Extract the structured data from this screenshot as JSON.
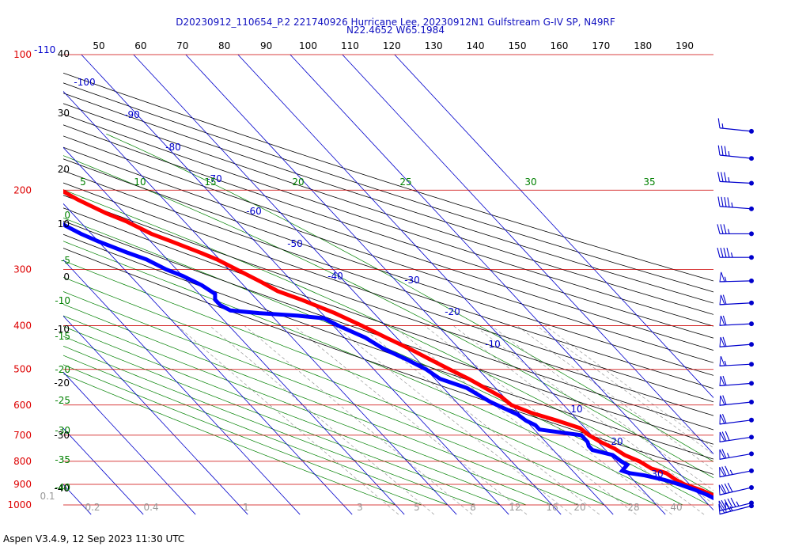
{
  "header": {
    "title_line1": "D20230912_110654_P.2 221740926 Hurricane Lee, 20230912N1 Gulfstream G-IV SP, N49RF",
    "title_line2": "N22.4652 W65.1984"
  },
  "footer": {
    "version": "Aspen V3.4.9, 12 Sep 2023  11:30 UTC"
  },
  "chart_data": {
    "type": "line",
    "title": "D20230912_110654_P.2 221740926 Hurricane Lee, 20230912N1 Gulfstream G-IV SP, N49RF",
    "subtitle": "N22.4652 W65.1984",
    "xlim": [
      -40,
      45
    ],
    "ylim": [
      1000,
      100
    ],
    "y_scale": "log",
    "grid": true,
    "colors": {
      "temperature": "#ff0000",
      "dewpoint": "#0000ff",
      "isobar": "#cc0000",
      "isotherm": "#0000cc",
      "dry_adiabat": "#000000",
      "moist_adiabat": "#008000",
      "mixing_ratio": "#999999",
      "label_blue": "#0000cc",
      "label_green": "#008000",
      "label_red": "#dd0000"
    },
    "pressure_labels": [
      {
        "p": 100,
        "text": "100"
      },
      {
        "p": 200,
        "text": "200"
      },
      {
        "p": 300,
        "text": "300"
      },
      {
        "p": 400,
        "text": "400"
      },
      {
        "p": 500,
        "text": "500"
      },
      {
        "p": 600,
        "text": "600"
      },
      {
        "p": 700,
        "text": "700"
      },
      {
        "p": 800,
        "text": "800"
      },
      {
        "p": 900,
        "text": "900"
      },
      {
        "p": 1000,
        "text": "1000"
      }
    ],
    "pressure_label_suffix": "-110",
    "isobar_lines": [
      100,
      200,
      300,
      400,
      500,
      600,
      700,
      800,
      900,
      1000
    ],
    "isotherm_lines": [
      -110,
      -100,
      -90,
      -80,
      -70,
      -60,
      -50,
      -40,
      -30,
      -20,
      -10,
      0,
      10,
      20,
      30,
      40
    ],
    "isotherm_labels": [
      {
        "t": -100,
        "text": "-100"
      },
      {
        "t": -90,
        "text": "-90"
      },
      {
        "t": -80,
        "text": "-80"
      },
      {
        "t": -70,
        "text": "-70"
      },
      {
        "t": -60,
        "text": "-60"
      },
      {
        "t": -50,
        "text": "-50"
      },
      {
        "t": -40,
        "text": "-40"
      },
      {
        "t": -30,
        "text": "-30"
      },
      {
        "t": -20,
        "text": "-20"
      },
      {
        "t": -10,
        "text": "-10"
      },
      {
        "t": 10,
        "text": "10"
      },
      {
        "t": 20,
        "text": "20"
      },
      {
        "t": 30,
        "text": "30"
      }
    ],
    "theta_lines": [
      40,
      50,
      60,
      70,
      80,
      90,
      100,
      110,
      120,
      130,
      140,
      150,
      160,
      170,
      180,
      190
    ],
    "theta_labels": [
      "50",
      "60",
      "70",
      "80",
      "90",
      "100",
      "110",
      "120",
      "130",
      "140",
      "150",
      "160",
      "170",
      "180",
      "190"
    ],
    "moist_lines": [
      -40,
      -35,
      -30,
      -25,
      -20,
      -15,
      -10,
      -5,
      0,
      5,
      10,
      15,
      20,
      25,
      30,
      35
    ],
    "moist_labels_top": [
      "5",
      "10",
      "15",
      "20",
      "25",
      "30",
      "35"
    ],
    "mixing_ratio_lines": [
      0.1,
      0.2,
      0.4,
      1,
      2,
      3,
      5,
      8,
      12,
      16,
      20,
      28,
      36,
      40
    ],
    "mixing_ratio_labels": [
      "0.1",
      "0.2",
      "0.4",
      "1",
      "3",
      "5",
      "8",
      "12",
      "16",
      "20",
      "28",
      "40"
    ],
    "left_axis_labels": [
      {
        "text": "40",
        "kind": "black"
      },
      {
        "text": "30",
        "kind": "black"
      },
      {
        "text": "20",
        "kind": "black"
      },
      {
        "text": "10",
        "kind": "black"
      },
      {
        "text": "0",
        "kind": "black"
      },
      {
        "text": "-10",
        "kind": "black"
      },
      {
        "text": "-20",
        "kind": "black"
      },
      {
        "text": "-30",
        "kind": "black"
      },
      {
        "text": "-40",
        "kind": "black"
      },
      {
        "text": "0",
        "kind": "green"
      },
      {
        "text": "-5",
        "kind": "green"
      },
      {
        "text": "-10",
        "kind": "green"
      },
      {
        "text": "-15",
        "kind": "green"
      },
      {
        "text": "-20",
        "kind": "green"
      },
      {
        "text": "-25",
        "kind": "green"
      },
      {
        "text": "-30",
        "kind": "green"
      },
      {
        "text": "-35",
        "kind": "green"
      },
      {
        "text": "-40",
        "kind": "green"
      }
    ],
    "series": [
      {
        "key": "temperature",
        "points": [
          {
            "p": 1000,
            "t": 26.0
          },
          {
            "p": 990,
            "t": 25.0
          },
          {
            "p": 975,
            "t": 24.0
          },
          {
            "p": 950,
            "t": 22.5
          },
          {
            "p": 925,
            "t": 21.0
          },
          {
            "p": 900,
            "t": 19.0
          },
          {
            "p": 880,
            "t": 18.2
          },
          {
            "p": 850,
            "t": 17.5
          },
          {
            "p": 830,
            "t": 15.5
          },
          {
            "p": 800,
            "t": 14.5
          },
          {
            "p": 775,
            "t": 12.8
          },
          {
            "p": 750,
            "t": 12.0
          },
          {
            "p": 725,
            "t": 10.5
          },
          {
            "p": 700,
            "t": 9.5
          },
          {
            "p": 675,
            "t": 9.0
          },
          {
            "p": 650,
            "t": 6.0
          },
          {
            "p": 625,
            "t": 2.5
          },
          {
            "p": 600,
            "t": 0.0
          },
          {
            "p": 575,
            "t": -0.5
          },
          {
            "p": 550,
            "t": -2.0
          },
          {
            "p": 525,
            "t": -3.5
          },
          {
            "p": 500,
            "t": -5.5
          },
          {
            "p": 475,
            "t": -7.5
          },
          {
            "p": 450,
            "t": -9.5
          },
          {
            "p": 425,
            "t": -12.0
          },
          {
            "p": 400,
            "t": -14.5
          },
          {
            "p": 375,
            "t": -17.5
          },
          {
            "p": 350,
            "t": -21.5
          },
          {
            "p": 335,
            "t": -24.5
          },
          {
            "p": 320,
            "t": -26.0
          },
          {
            "p": 300,
            "t": -28.5
          },
          {
            "p": 285,
            "t": -30.5
          },
          {
            "p": 275,
            "t": -32.5
          },
          {
            "p": 260,
            "t": -36.0
          },
          {
            "p": 250,
            "t": -38.5
          },
          {
            "p": 235,
            "t": -41.0
          },
          {
            "p": 225,
            "t": -43.5
          },
          {
            "p": 210,
            "t": -46.5
          },
          {
            "p": 200,
            "t": -48.0
          },
          {
            "p": 190,
            "t": -50.5
          },
          {
            "p": 180,
            "t": -52.5
          },
          {
            "p": 172,
            "t": -55.0
          },
          {
            "p": 167,
            "t": -54.5
          },
          {
            "p": 160,
            "t": -56.0
          },
          {
            "p": 154,
            "t": -57.5
          }
        ]
      },
      {
        "key": "dewpoint",
        "points": [
          {
            "p": 1000,
            "t": 23.5
          },
          {
            "p": 990,
            "t": 22.8
          },
          {
            "p": 975,
            "t": 22.5
          },
          {
            "p": 950,
            "t": 21.5
          },
          {
            "p": 925,
            "t": 20.0
          },
          {
            "p": 900,
            "t": 18.0
          },
          {
            "p": 880,
            "t": 16.0
          },
          {
            "p": 860,
            "t": 13.0
          },
          {
            "p": 850,
            "t": 10.5
          },
          {
            "p": 840,
            "t": 9.5
          },
          {
            "p": 815,
            "t": 11.5
          },
          {
            "p": 800,
            "t": 11.0
          },
          {
            "p": 775,
            "t": 10.5
          },
          {
            "p": 755,
            "t": 7.5
          },
          {
            "p": 740,
            "t": 7.5
          },
          {
            "p": 725,
            "t": 8.0
          },
          {
            "p": 700,
            "t": 8.0
          },
          {
            "p": 690,
            "t": 4.5
          },
          {
            "p": 680,
            "t": 1.0
          },
          {
            "p": 665,
            "t": 1.0
          },
          {
            "p": 650,
            "t": 0.0
          },
          {
            "p": 630,
            "t": -0.5
          },
          {
            "p": 610,
            "t": -2.0
          },
          {
            "p": 590,
            "t": -3.5
          },
          {
            "p": 570,
            "t": -4.5
          },
          {
            "p": 550,
            "t": -5.5
          },
          {
            "p": 525,
            "t": -9.0
          },
          {
            "p": 500,
            "t": -10.0
          },
          {
            "p": 475,
            "t": -12.0
          },
          {
            "p": 450,
            "t": -14.5
          },
          {
            "p": 425,
            "t": -16.0
          },
          {
            "p": 400,
            "t": -19.0
          },
          {
            "p": 385,
            "t": -20.5
          },
          {
            "p": 380,
            "t": -25.0
          },
          {
            "p": 375,
            "t": -32.0
          },
          {
            "p": 370,
            "t": -37.0
          },
          {
            "p": 360,
            "t": -38.0
          },
          {
            "p": 350,
            "t": -38.0
          },
          {
            "p": 340,
            "t": -37.0
          },
          {
            "p": 325,
            "t": -38.0
          },
          {
            "p": 310,
            "t": -40.0
          },
          {
            "p": 300,
            "t": -42.0
          },
          {
            "p": 285,
            "t": -44.0
          },
          {
            "p": 275,
            "t": -46.5
          },
          {
            "p": 260,
            "t": -50.0
          },
          {
            "p": 250,
            "t": -52.0
          },
          {
            "p": 240,
            "t": -53.5
          },
          {
            "p": 230,
            "t": -54.5
          },
          {
            "p": 220,
            "t": -57.0
          },
          {
            "p": 210,
            "t": -60.0
          },
          {
            "p": 200,
            "t": -63.5
          },
          {
            "p": 195,
            "t": -66.5
          },
          {
            "p": 190,
            "t": -67.5
          }
        ]
      }
    ],
    "wind_barbs": [
      {
        "p": 148,
        "speed": 15,
        "dir": 250
      },
      {
        "p": 170,
        "speed": 35,
        "dir": 250
      },
      {
        "p": 193,
        "speed": 35,
        "dir": 260
      },
      {
        "p": 220,
        "speed": 45,
        "dir": 255
      },
      {
        "p": 250,
        "speed": 35,
        "dir": 270
      },
      {
        "p": 282,
        "speed": 45,
        "dir": 270
      },
      {
        "p": 318,
        "speed": 55,
        "dir": 275
      },
      {
        "p": 356,
        "speed": 60,
        "dir": 280
      },
      {
        "p": 396,
        "speed": 60,
        "dir": 280
      },
      {
        "p": 440,
        "speed": 60,
        "dir": 285
      },
      {
        "p": 487,
        "speed": 55,
        "dir": 280
      },
      {
        "p": 537,
        "speed": 60,
        "dir": 285
      },
      {
        "p": 591,
        "speed": 60,
        "dir": 290
      },
      {
        "p": 648,
        "speed": 60,
        "dir": 295
      },
      {
        "p": 707,
        "speed": 70,
        "dir": 300
      },
      {
        "p": 770,
        "speed": 65,
        "dir": 305
      },
      {
        "p": 840,
        "speed": 75,
        "dir": 310
      },
      {
        "p": 915,
        "speed": 80,
        "dir": 320
      },
      {
        "p": 990,
        "speed": 95,
        "dir": 325
      },
      {
        "p": 1005,
        "speed": 105,
        "dir": 330
      }
    ]
  }
}
